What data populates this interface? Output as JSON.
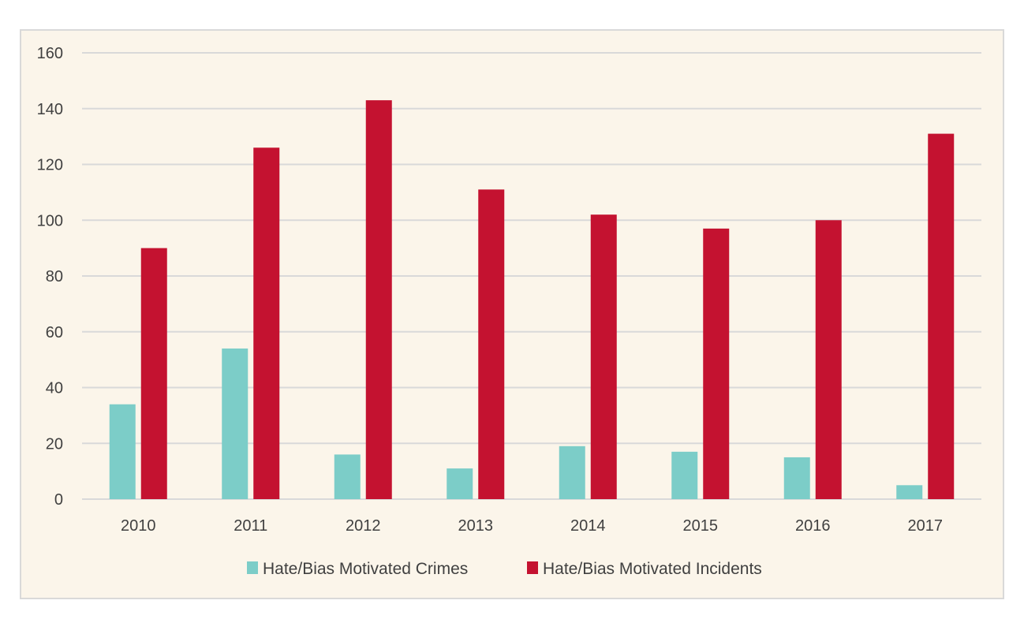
{
  "chart_data": {
    "type": "bar",
    "title": "",
    "xlabel": "",
    "ylabel": "",
    "categories": [
      "2010",
      "2011",
      "2012",
      "2013",
      "2014",
      "2015",
      "2016",
      "2017"
    ],
    "series": [
      {
        "name": "Hate/Bias Motivated Crimes",
        "color": "#7ccdc8",
        "values": [
          34,
          54,
          16,
          11,
          19,
          17,
          15,
          5
        ]
      },
      {
        "name": "Hate/Bias Motivated Incidents",
        "color": "#c41230",
        "values": [
          90,
          126,
          143,
          111,
          102,
          97,
          100,
          131
        ]
      }
    ],
    "ylim": [
      0,
      160
    ],
    "yticks": [
      0,
      20,
      40,
      60,
      80,
      100,
      120,
      140,
      160
    ],
    "grid": true,
    "legend_position": "bottom",
    "background_color": "#fbf5ea",
    "gridline_color": "#d9d9d9"
  }
}
